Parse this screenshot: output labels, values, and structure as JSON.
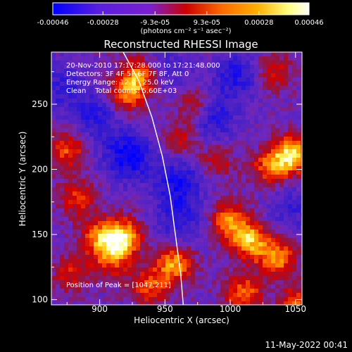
{
  "chart_data": {
    "type": "heatmap",
    "title": "Reconstructed RHESSI Image",
    "xlabel": "Heliocentric X (arcsec)",
    "ylabel": "Heliocentric Y (arcsec)",
    "xlim": [
      863,
      1055
    ],
    "ylim": [
      96,
      290
    ],
    "x_ticks": [
      900,
      950,
      1000,
      1050
    ],
    "y_ticks": [
      100,
      150,
      200,
      250
    ],
    "colorbar": {
      "tick_labels": [
        "-0.00046",
        "-0.00028",
        "-9.3e-05",
        "9.3e-05",
        "0.00028",
        "0.00046"
      ],
      "tick_values": [
        -0.00046,
        -0.00028,
        -9.3e-05,
        9.3e-05,
        0.00028,
        0.00046
      ],
      "range": [
        -0.00046,
        0.00046
      ],
      "unit_label": "(photons cm⁻² s⁻¹ asec⁻²)",
      "colors": [
        "#0000ff",
        "#7a1fd0",
        "#cc0000",
        "#ff6a00",
        "#ffb000",
        "#ffff80",
        "#ffffff"
      ]
    },
    "annotations": [
      "20-Nov-2010 17:17:28.000 to 17:21:48.000",
      "Detectors: 3F 4F 5F 6F 7F 8F, Att 0",
      "Energy Range: 12.0 - 25.0 keV",
      "Clean    Total counts: 5.60E+03"
    ],
    "peak_label": "Position of Peak = [1047,211]",
    "peak": [
      1047,
      211
    ],
    "hotspots": [
      {
        "x": 931,
        "y": 272,
        "value": 0.00032
      },
      {
        "x": 921,
        "y": 257,
        "value": 0.00028
      },
      {
        "x": 876,
        "y": 215,
        "value": 0.00025
      },
      {
        "x": 883,
        "y": 178,
        "value": 0.0002
      },
      {
        "x": 918,
        "y": 148,
        "value": 0.00042
      },
      {
        "x": 900,
        "y": 147,
        "value": 0.0003
      },
      {
        "x": 910,
        "y": 130,
        "value": 0.00022
      },
      {
        "x": 957,
        "y": 127,
        "value": 0.00036
      },
      {
        "x": 938,
        "y": 110,
        "value": 0.00024
      },
      {
        "x": 963,
        "y": 222,
        "value": 0.00015
      },
      {
        "x": 973,
        "y": 248,
        "value": 0.0002
      },
      {
        "x": 1033,
        "y": 275,
        "value": 0.00018
      },
      {
        "x": 1047,
        "y": 211,
        "value": 0.00046
      },
      {
        "x": 1030,
        "y": 201,
        "value": 0.00026
      },
      {
        "x": 1000,
        "y": 160,
        "value": 0.00032
      },
      {
        "x": 1015,
        "y": 145,
        "value": 0.00038
      },
      {
        "x": 1036,
        "y": 132,
        "value": 0.00034
      },
      {
        "x": 1010,
        "y": 105,
        "value": 0.0003
      },
      {
        "x": 878,
        "y": 120,
        "value": 0.00018
      },
      {
        "x": 990,
        "y": 206,
        "value": 0.00012
      },
      {
        "x": 1052,
        "y": 96,
        "value": 0.00028
      }
    ],
    "coldspots": [
      {
        "x": 922,
        "y": 210,
        "value": -0.00038
      },
      {
        "x": 960,
        "y": 190,
        "value": -0.00032
      },
      {
        "x": 985,
        "y": 240,
        "value": -0.0003
      },
      {
        "x": 897,
        "y": 240,
        "value": -0.00026
      },
      {
        "x": 1005,
        "y": 272,
        "value": -0.00028
      },
      {
        "x": 960,
        "y": 160,
        "value": -0.00024
      },
      {
        "x": 950,
        "y": 276,
        "value": -0.0002
      },
      {
        "x": 870,
        "y": 262,
        "value": -0.00022
      },
      {
        "x": 1047,
        "y": 170,
        "value": -0.0002
      }
    ],
    "limb_curve": [
      [
        918,
        290
      ],
      [
        930,
        268
      ],
      [
        940,
        240
      ],
      [
        948,
        210
      ],
      [
        954,
        180
      ],
      [
        958,
        150
      ],
      [
        962,
        120
      ],
      [
        964,
        96
      ]
    ]
  },
  "footer": {
    "date": "11-May-2022 00:41"
  }
}
